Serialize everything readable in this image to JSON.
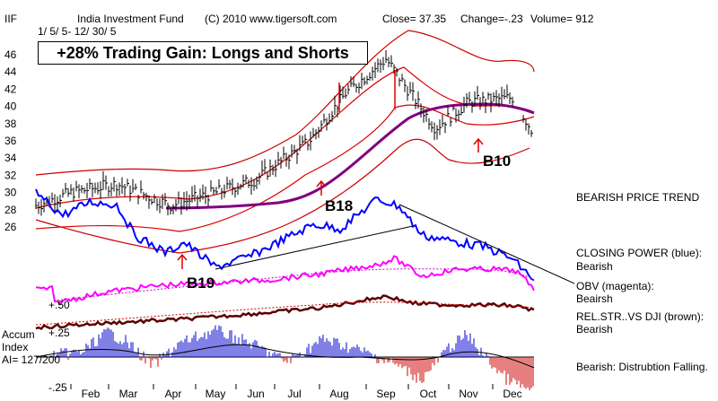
{
  "header": {
    "ticker": "IIF",
    "name": "India Investment Fund",
    "copyright": "(C) 2010 www.tigersoft.com",
    "close": "Close=  37.35",
    "change": "Change=-.23",
    "volume": "Volume= 912",
    "date_range": "1/ 5/ 5- 12/ 30/ 5"
  },
  "title_box": "+28% Trading Gain: Longs and Shorts",
  "side_labels": {
    "trend": "BEARISH PRICE TREND",
    "closing_power": [
      "CLOSING POWER (blue):",
      "Bearish"
    ],
    "obv": [
      "OBV (magenta):",
      "Beairsh"
    ],
    "relstr": [
      "REL.STR..VS DJI (brown):",
      "Bearish"
    ],
    "accum_status": "Bearish:  Distrubtion Falling."
  },
  "accum_labels": {
    "title": "Accum",
    "subtitle": "Index",
    "ai": "AI= 127/200",
    "plus50": "+.50",
    "plus25": "+.25",
    "minus25": "-.25"
  },
  "signals": [
    {
      "label": "B19",
      "x": "Apr",
      "y": 26.5
    },
    {
      "label": "B18",
      "x": "Jul",
      "y": 32.5
    },
    {
      "label": "B10",
      "x": "Oct",
      "y": 36.5
    }
  ],
  "colors": {
    "price_bars": "#000000",
    "bollinger_bands": "#dd0000",
    "moving_average": "#800080",
    "closing_power": "#0000ff",
    "obv": "#ff00ff",
    "relative_strength": "#5a0000",
    "accum_positive": "#0000cc",
    "accum_negative": "#cc0000",
    "signal_arrows": "#dd0000"
  },
  "chart_data": {
    "type": "line",
    "title": "India Investment Fund",
    "y_axis": {
      "ticks": [
        26,
        28,
        30,
        32,
        34,
        36,
        38,
        40,
        42,
        44,
        46
      ],
      "range": [
        24,
        48
      ]
    },
    "months": [
      "Feb",
      "Mar",
      "Apr",
      "May",
      "Jun",
      "Jul",
      "Aug",
      "Sep",
      "Oct",
      "Nov",
      "Dec"
    ],
    "price_close": [
      {
        "x": "Jan",
        "y": 28.5
      },
      {
        "x": "Feb",
        "y": 30.0
      },
      {
        "x": "Mar",
        "y": 31.0
      },
      {
        "x": "Apr",
        "y": 28.5
      },
      {
        "x": "May",
        "y": 30.0
      },
      {
        "x": "Jun",
        "y": 31.5
      },
      {
        "x": "Jul",
        "y": 36.0
      },
      {
        "x": "Aug",
        "y": 41.5
      },
      {
        "x": "Sep",
        "y": 45.5
      },
      {
        "x": "Oct",
        "y": 37.5
      },
      {
        "x": "Nov",
        "y": 40.5
      },
      {
        "x": "Dec",
        "y": 41.0
      },
      {
        "x": "Dec-end",
        "y": 37.35
      }
    ],
    "moving_average": [
      {
        "x": "Jan",
        "y": 29.5
      },
      {
        "x": "Mar",
        "y": 29.8
      },
      {
        "x": "May",
        "y": 29.8
      },
      {
        "x": "Jul",
        "y": 31.5
      },
      {
        "x": "Aug",
        "y": 35.5
      },
      {
        "x": "Sep",
        "y": 38.5
      },
      {
        "x": "Oct",
        "y": 40.5
      },
      {
        "x": "Nov",
        "y": 41.0
      },
      {
        "x": "Dec",
        "y": 40.0
      }
    ]
  }
}
